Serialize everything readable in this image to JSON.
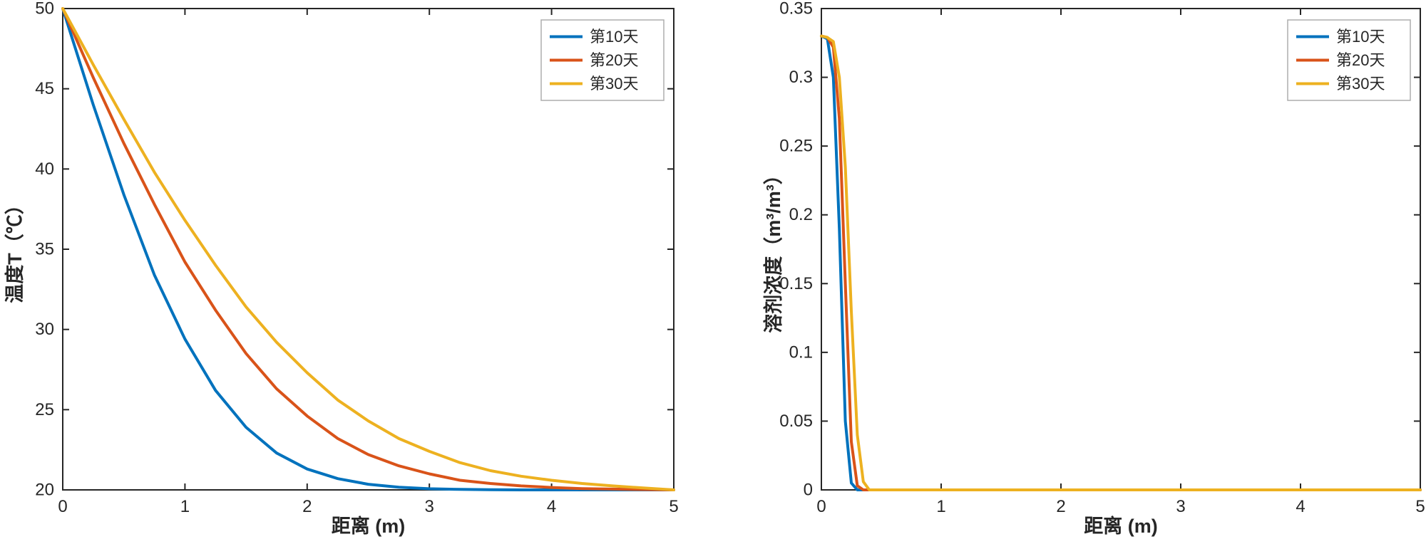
{
  "style": {
    "background": "#ffffff",
    "axis_color": "#262626",
    "legend_border_color": "#adadad",
    "matlab_blue": "#0072BD",
    "matlab_orange": "#D95319",
    "matlab_yellow": "#EDB120"
  },
  "chart_data": [
    {
      "type": "line",
      "title": "",
      "xlabel": "距离 (m)",
      "ylabel": "温度T（℃）",
      "xlim": [
        0,
        5
      ],
      "ylim": [
        20,
        50
      ],
      "xticks": [
        0,
        1,
        2,
        3,
        4,
        5
      ],
      "yticks": [
        20,
        25,
        30,
        35,
        40,
        45,
        50
      ],
      "grid": false,
      "legend_position": "northeast",
      "legend": [
        "第10天",
        "第20天",
        "第30天"
      ],
      "series": [
        {
          "name": "第10天",
          "color": "#0072BD",
          "x": [
            0,
            0.25,
            0.5,
            0.75,
            1,
            1.25,
            1.5,
            1.75,
            2,
            2.25,
            2.5,
            2.75,
            3,
            3.25,
            3.5,
            3.75,
            4,
            4.25,
            4.5,
            4.75,
            5
          ],
          "y": [
            50,
            44.0,
            38.4,
            33.4,
            29.4,
            26.2,
            23.9,
            22.3,
            21.3,
            20.7,
            20.35,
            20.17,
            20.07,
            20.03,
            20.01,
            20,
            20,
            20,
            20,
            20,
            20
          ]
        },
        {
          "name": "第20天",
          "color": "#D95319",
          "x": [
            0,
            0.25,
            0.5,
            0.75,
            1,
            1.25,
            1.5,
            1.75,
            2,
            2.25,
            2.5,
            2.75,
            3,
            3.25,
            3.5,
            3.75,
            4,
            4.25,
            4.5,
            4.75,
            5
          ],
          "y": [
            50,
            45.7,
            41.6,
            37.8,
            34.2,
            31.2,
            28.5,
            26.3,
            24.6,
            23.2,
            22.2,
            21.5,
            21.0,
            20.6,
            20.4,
            20.25,
            20.15,
            20.08,
            20.05,
            20.02,
            20
          ]
        },
        {
          "name": "第30天",
          "color": "#EDB120",
          "x": [
            0,
            0.25,
            0.5,
            0.75,
            1,
            1.25,
            1.5,
            1.75,
            2,
            2.25,
            2.5,
            2.75,
            3,
            3.25,
            3.5,
            3.75,
            4,
            4.25,
            4.5,
            4.75,
            5
          ],
          "y": [
            50,
            46.5,
            43.1,
            39.8,
            36.8,
            34.0,
            31.4,
            29.2,
            27.3,
            25.6,
            24.3,
            23.2,
            22.4,
            21.7,
            21.2,
            20.85,
            20.6,
            20.4,
            20.25,
            20.12,
            20
          ]
        }
      ]
    },
    {
      "type": "line",
      "title": "",
      "xlabel": "距离 (m)",
      "ylabel": "溶剂浓度（m³/m³）",
      "xlim": [
        0,
        5
      ],
      "ylim": [
        0,
        0.35
      ],
      "xticks": [
        0,
        1,
        2,
        3,
        4,
        5
      ],
      "yticks": [
        0,
        0.05,
        0.1,
        0.15,
        0.2,
        0.25,
        0.3,
        0.35
      ],
      "grid": false,
      "legend_position": "northeast",
      "legend": [
        "第10天",
        "第20天",
        "第30天"
      ],
      "series": [
        {
          "name": "第10天",
          "color": "#0072BD",
          "x": [
            0,
            0.05,
            0.1,
            0.15,
            0.2,
            0.25,
            0.3,
            0.35,
            0.4,
            0.5,
            0.75,
            1,
            1.5,
            2,
            2.5,
            3,
            3.5,
            4,
            4.5,
            5
          ],
          "y": [
            0.33,
            0.328,
            0.3,
            0.19,
            0.05,
            0.005,
            0,
            0,
            0,
            0,
            0,
            0,
            0,
            0,
            0,
            0,
            0,
            0,
            0,
            0
          ]
        },
        {
          "name": "第20天",
          "color": "#D95319",
          "x": [
            0,
            0.05,
            0.1,
            0.15,
            0.2,
            0.25,
            0.3,
            0.35,
            0.4,
            0.5,
            0.75,
            1,
            1.5,
            2,
            2.5,
            3,
            3.5,
            4,
            4.5,
            5
          ],
          "y": [
            0.33,
            0.329,
            0.322,
            0.27,
            0.15,
            0.035,
            0.003,
            0,
            0,
            0,
            0,
            0,
            0,
            0,
            0,
            0,
            0,
            0,
            0,
            0
          ]
        },
        {
          "name": "第30天",
          "color": "#EDB120",
          "x": [
            0,
            0.05,
            0.1,
            0.15,
            0.2,
            0.25,
            0.3,
            0.35,
            0.4,
            0.5,
            0.75,
            1,
            1.5,
            2,
            2.5,
            3,
            3.5,
            4,
            4.5,
            5
          ],
          "y": [
            0.33,
            0.329,
            0.326,
            0.3,
            0.235,
            0.13,
            0.04,
            0.006,
            0,
            0,
            0,
            0,
            0,
            0,
            0,
            0,
            0,
            0,
            0,
            0
          ]
        }
      ]
    }
  ]
}
